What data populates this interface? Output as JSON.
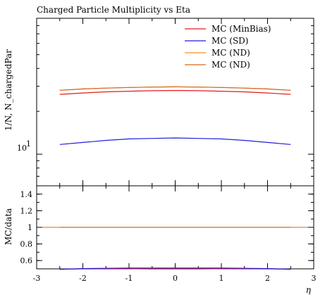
{
  "chart_data": [
    {
      "type": "line",
      "title": "Charged Particle Multiplicity vs Eta",
      "ylabel": "1/N, N_chargedPar",
      "y_scale": "log",
      "ytick_label": "10",
      "ytick_exponent": "1",
      "xlim": [
        -3,
        3
      ],
      "ylim": [
        6,
        90
      ],
      "grid": false,
      "legend_position": "top-right",
      "x": [
        -2.5,
        -2.0,
        -1.5,
        -1.0,
        -0.5,
        0.0,
        0.5,
        1.0,
        1.5,
        2.0,
        2.5
      ],
      "series": [
        {
          "name": "MC (MinBias)",
          "color": "#e41a1c",
          "values": [
            26.3,
            26.9,
            27.4,
            27.7,
            27.9,
            28.0,
            27.9,
            27.7,
            27.4,
            26.9,
            26.3
          ]
        },
        {
          "name": "MC (SD)",
          "color": "#1f1fdd",
          "values": [
            11.7,
            12.1,
            12.5,
            12.8,
            12.9,
            13.0,
            12.9,
            12.8,
            12.5,
            12.1,
            11.7
          ]
        },
        {
          "name": "MC (ND)",
          "color": "#ff8c1a",
          "values": [
            28.1,
            28.7,
            29.1,
            29.4,
            29.6,
            29.7,
            29.6,
            29.4,
            29.1,
            28.7,
            28.1
          ]
        },
        {
          "name": "MC (ND)",
          "color": "#d2691e",
          "values": [
            28.1,
            28.7,
            29.1,
            29.4,
            29.6,
            29.7,
            29.6,
            29.4,
            29.1,
            28.7,
            28.1
          ]
        }
      ]
    },
    {
      "type": "line",
      "xlabel": "η",
      "ylabel": "MC/data",
      "xlim": [
        -3,
        3
      ],
      "ylim": [
        0.5,
        1.5
      ],
      "xticks": [
        "-3",
        "-2",
        "-1",
        "0",
        "1",
        "2",
        "3"
      ],
      "yticks": [
        "0.6",
        "0.8",
        "1",
        "1.2",
        "1.4"
      ],
      "reference_line": 1,
      "x": [
        -2.5,
        -2.0,
        -1.5,
        -1.0,
        -0.5,
        0.0,
        0.5,
        1.0,
        1.5,
        2.0,
        2.5
      ],
      "series": [
        {
          "name": "MC (MinBias)",
          "color": "#e41a1c",
          "values": [
            0.495,
            0.5,
            0.5,
            0.5,
            0.505,
            0.505,
            0.505,
            0.5,
            0.5,
            0.5,
            0.495
          ]
        },
        {
          "name": "MC (SD)",
          "color": "#1f1fdd",
          "values": [
            0.495,
            0.503,
            0.507,
            0.509,
            0.51,
            0.51,
            0.51,
            0.509,
            0.507,
            0.503,
            0.495
          ]
        },
        {
          "name": "MC (ND)",
          "color": "#d2691e",
          "values": [
            1,
            1,
            1,
            1,
            1,
            1,
            1,
            1,
            1,
            1,
            1
          ]
        }
      ]
    }
  ]
}
